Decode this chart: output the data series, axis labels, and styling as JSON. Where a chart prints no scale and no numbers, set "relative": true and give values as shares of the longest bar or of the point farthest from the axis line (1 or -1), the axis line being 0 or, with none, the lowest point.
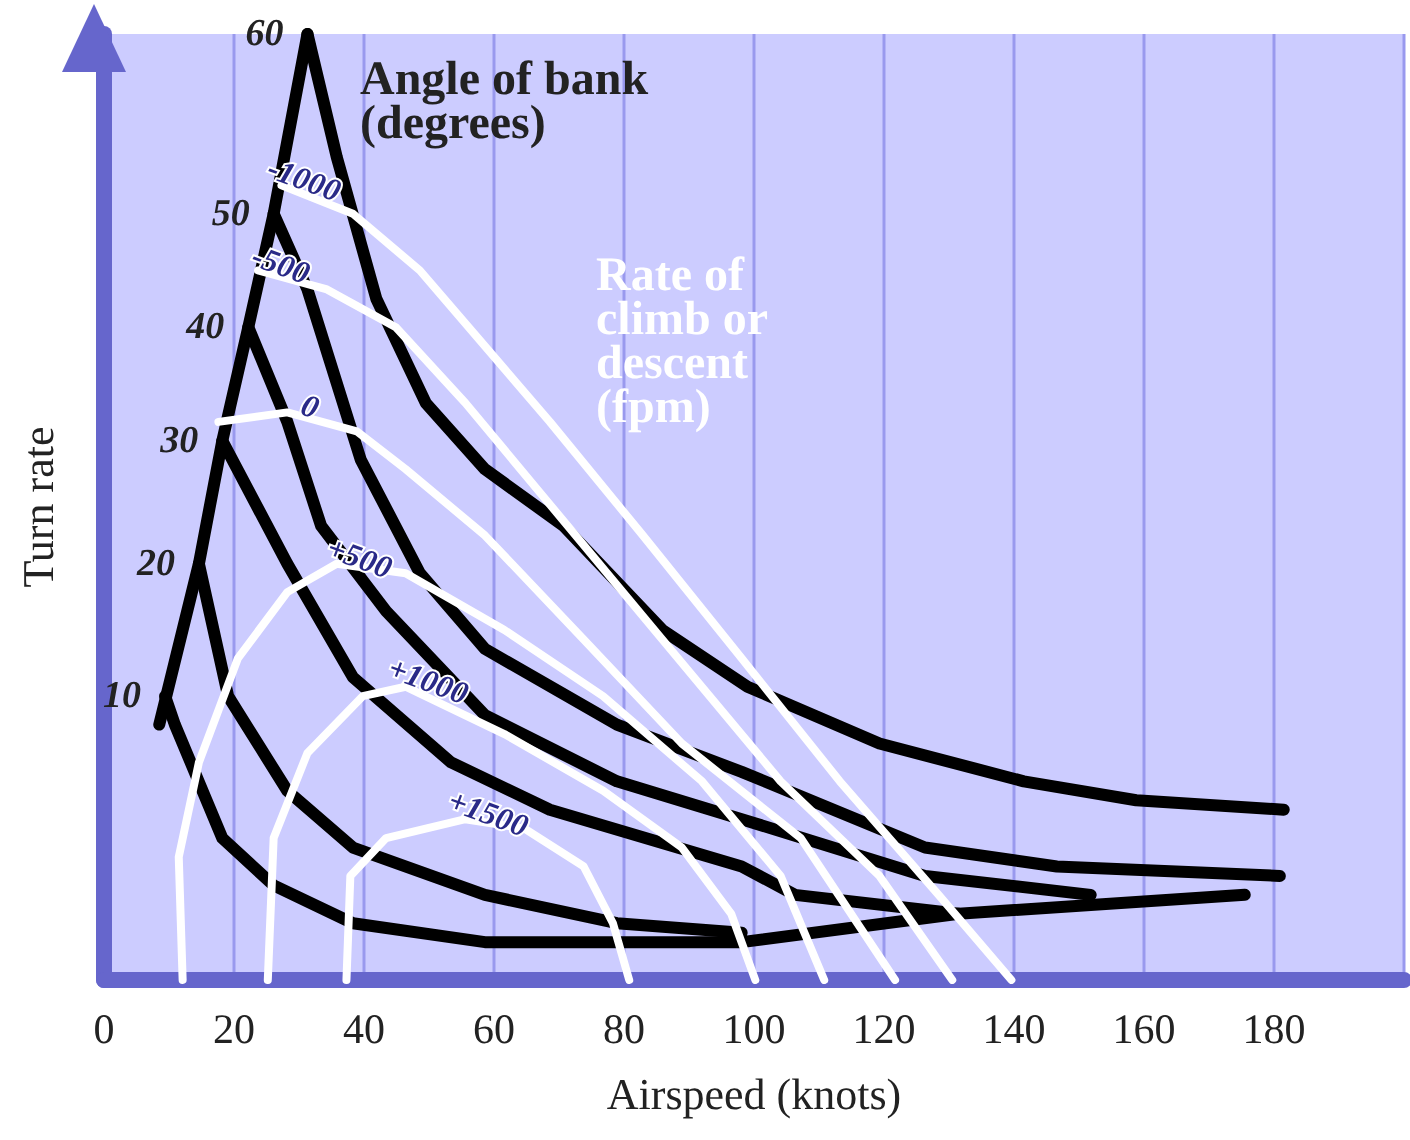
{
  "chart_data": {
    "type": "line",
    "relative": true,
    "xlabel": "Airspeed (knots)",
    "ylabel": "Turn rate",
    "annotations": [
      "Angle of bank (degrees)",
      "Rate of climb or descent (fpm)"
    ],
    "xlim": [
      0,
      200
    ],
    "xticks": [
      0,
      20,
      40,
      60,
      80,
      100,
      120,
      140,
      160,
      180
    ],
    "grid": "x",
    "legend": false,
    "marker": "none",
    "line_style": "solid",
    "series": [
      {
        "color": "#000000",
        "x": [
          8.5,
          14.6,
          18.2,
          22.2,
          26.1,
          31.3
        ],
        "values": [
          0.27,
          0.44,
          0.57,
          0.69,
          0.81,
          1.0
        ]
      },
      {
        "name": "60",
        "color": "#000000",
        "x": [
          31.3,
          35.8,
          41.9,
          49.5,
          58.6,
          70.7,
          85.9,
          99.0,
          119.3,
          141.5,
          158.8,
          181.5
        ],
        "values": [
          1.0,
          0.87,
          0.72,
          0.61,
          0.54,
          0.48,
          0.37,
          0.31,
          0.25,
          0.21,
          0.19,
          0.18
        ]
      },
      {
        "name": "50",
        "color": "#000000",
        "x": [
          26.1,
          31.3,
          39.5,
          48.6,
          58.6,
          78.9,
          98.1,
          126.3,
          146.6,
          180.9
        ],
        "values": [
          0.81,
          0.73,
          0.55,
          0.43,
          0.35,
          0.27,
          0.22,
          0.14,
          0.12,
          0.11
        ]
      },
      {
        "name": "40",
        "color": "#000000",
        "x": [
          22.2,
          28.2,
          33.4,
          43.4,
          58.6,
          78.9,
          98.1,
          126.3,
          151.8
        ],
        "values": [
          0.69,
          0.59,
          0.48,
          0.39,
          0.28,
          0.21,
          0.17,
          0.11,
          0.09
        ]
      },
      {
        "name": "30",
        "color": "#000000",
        "x": [
          18.2,
          28.2,
          38.3,
          53.4,
          68.6,
          98.1,
          106.3,
          131.5
        ],
        "values": [
          0.57,
          0.44,
          0.32,
          0.23,
          0.18,
          0.12,
          0.09,
          0.07
        ]
      },
      {
        "name": "20",
        "color": "#000000",
        "x": [
          14.6,
          19.1,
          28.2,
          38.3,
          58.6,
          78.9,
          98.1
        ],
        "values": [
          0.44,
          0.3,
          0.2,
          0.14,
          0.09,
          0.06,
          0.05
        ]
      },
      {
        "name": "10",
        "color": "#000000",
        "x": [
          9.4,
          10.9,
          18.2,
          26.1,
          38.3,
          58.6,
          98.1,
          131.5,
          175.5
        ],
        "values": [
          0.3,
          0.27,
          0.15,
          0.1,
          0.06,
          0.04,
          0.04,
          0.07,
          0.09
        ]
      },
      {
        "name": "-1000",
        "color": "#ffffff",
        "x": [
          27.3,
          38.3,
          48.6,
          58.6,
          68.6,
          82.9,
          98.1,
          113.2,
          128.4,
          139.6
        ],
        "values": [
          0.84,
          0.81,
          0.75,
          0.67,
          0.59,
          0.47,
          0.34,
          0.21,
          0.09,
          0
        ]
      },
      {
        "name": "-500",
        "color": "#ffffff",
        "x": [
          23.7,
          34.3,
          44.9,
          55.6,
          67.7,
          85.9,
          104.1,
          119.3,
          130.5
        ],
        "values": [
          0.75,
          0.73,
          0.69,
          0.61,
          0.51,
          0.36,
          0.21,
          0.11,
          0
        ]
      },
      {
        "name": "0",
        "color": "#ffffff",
        "x": [
          17.6,
          28.2,
          38.9,
          46.4,
          58.6,
          73.8,
          88.9,
          107.2,
          121.7
        ],
        "values": [
          0.59,
          0.6,
          0.58,
          0.54,
          0.47,
          0.36,
          0.25,
          0.15,
          0
        ]
      },
      {
        "name": "+500",
        "color": "#ffffff",
        "x": [
          12.1,
          11.5,
          14.6,
          20.6,
          28.2,
          35.8,
          46.4,
          61.6,
          76.8,
          92.0,
          104.1,
          110.8
        ],
        "values": [
          0,
          0.13,
          0.23,
          0.34,
          0.41,
          0.44,
          0.43,
          0.37,
          0.3,
          0.21,
          0.11,
          0
        ]
      },
      {
        "name": "+1000",
        "color": "#ffffff",
        "x": [
          25.2,
          26.1,
          31.3,
          39.8,
          46.4,
          61.6,
          76.8,
          88.9,
          96.5,
          100.2
        ],
        "values": [
          0,
          0.15,
          0.24,
          0.3,
          0.31,
          0.26,
          0.2,
          0.14,
          0.07,
          0
        ]
      },
      {
        "name": "+1500",
        "color": "#ffffff",
        "x": [
          37.3,
          37.9,
          43.4,
          55.6,
          64.7,
          73.8,
          78.3,
          80.8
        ],
        "values": [
          0,
          0.11,
          0.15,
          0.17,
          0.16,
          0.12,
          0.06,
          0
        ]
      }
    ]
  }
}
